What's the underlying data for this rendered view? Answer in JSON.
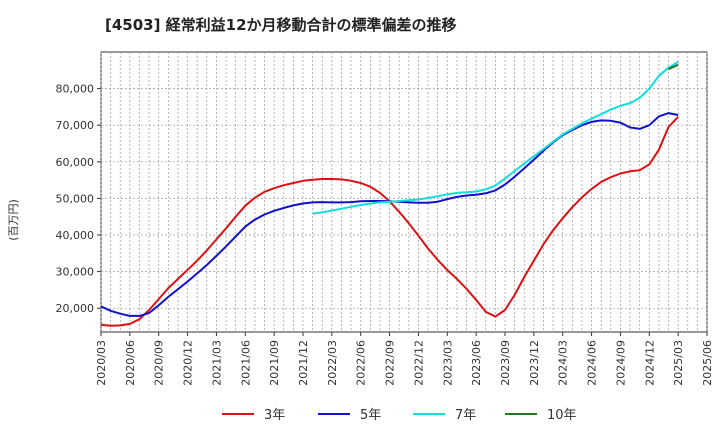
{
  "chart_data": {
    "type": "line",
    "title": "[4503]  経常利益12か月移動合計の標準偏差の推移",
    "ylabel": "(百万円)",
    "xlabel": "",
    "ylim": [
      13500,
      90000
    ],
    "yticks": [
      20000,
      30000,
      40000,
      50000,
      60000,
      70000,
      80000
    ],
    "ytick_labels": [
      "20,000",
      "30,000",
      "40,000",
      "50,000",
      "60,000",
      "70,000",
      "80,000"
    ],
    "x_range": [
      "2020-03",
      "2025-06"
    ],
    "xtick_labels": [
      "2020/03",
      "2020/06",
      "2020/09",
      "2020/12",
      "2021/03",
      "2021/06",
      "2021/09",
      "2021/12",
      "2022/03",
      "2022/06",
      "2022/09",
      "2022/12",
      "2023/03",
      "2023/06",
      "2023/09",
      "2023/12",
      "2024/03",
      "2024/06",
      "2024/09",
      "2024/12",
      "2025/03",
      "2025/06"
    ],
    "grid": true,
    "legend_position": "bottom",
    "series": [
      {
        "name": "3年",
        "color": "#dd1111",
        "x": [
          "2020-03",
          "2020-04",
          "2020-05",
          "2020-06",
          "2020-07",
          "2020-08",
          "2020-09",
          "2020-10",
          "2020-11",
          "2020-12",
          "2021-01",
          "2021-02",
          "2021-03",
          "2021-04",
          "2021-05",
          "2021-06",
          "2021-07",
          "2021-08",
          "2021-09",
          "2021-10",
          "2021-11",
          "2021-12",
          "2022-01",
          "2022-02",
          "2022-03",
          "2022-04",
          "2022-05",
          "2022-06",
          "2022-07",
          "2022-08",
          "2022-09",
          "2022-10",
          "2022-11",
          "2022-12",
          "2023-01",
          "2023-02",
          "2023-03",
          "2023-04",
          "2023-05",
          "2023-06",
          "2023-07",
          "2023-08",
          "2023-09",
          "2023-10",
          "2023-11",
          "2023-12",
          "2024-01",
          "2024-02",
          "2024-03",
          "2024-04",
          "2024-05",
          "2024-06",
          "2024-07",
          "2024-08",
          "2024-09",
          "2024-10",
          "2024-11",
          "2024-12",
          "2025-01",
          "2025-02",
          "2025-03"
        ],
        "y": [
          15500,
          15200,
          15300,
          15700,
          17000,
          19500,
          22500,
          25500,
          28000,
          30500,
          33000,
          35800,
          38800,
          41800,
          45000,
          48000,
          50200,
          51800,
          52800,
          53600,
          54200,
          54800,
          55100,
          55300,
          55300,
          55200,
          54800,
          54200,
          53200,
          51500,
          49200,
          46300,
          43200,
          39800,
          36300,
          33200,
          30400,
          28000,
          25300,
          22300,
          19000,
          17700,
          19500,
          23600,
          28500,
          33000,
          37500,
          41300,
          44600,
          47600,
          50300,
          52600,
          54500,
          55800,
          56800,
          57400,
          57700,
          59300,
          63300,
          69500,
          72300
        ]
      },
      {
        "name": "5年",
        "color": "#1111cc",
        "x": [
          "2020-03",
          "2020-04",
          "2020-05",
          "2020-06",
          "2020-07",
          "2020-08",
          "2020-09",
          "2020-10",
          "2020-11",
          "2020-12",
          "2021-01",
          "2021-02",
          "2021-03",
          "2021-04",
          "2021-05",
          "2021-06",
          "2021-07",
          "2021-08",
          "2021-09",
          "2021-10",
          "2021-11",
          "2021-12",
          "2022-01",
          "2022-02",
          "2022-03",
          "2022-04",
          "2022-05",
          "2022-06",
          "2022-07",
          "2022-08",
          "2022-09",
          "2022-10",
          "2022-11",
          "2022-12",
          "2023-01",
          "2023-02",
          "2023-03",
          "2023-04",
          "2023-05",
          "2023-06",
          "2023-07",
          "2023-08",
          "2023-09",
          "2023-10",
          "2023-11",
          "2023-12",
          "2024-01",
          "2024-02",
          "2024-03",
          "2024-04",
          "2024-05",
          "2024-06",
          "2024-07",
          "2024-08",
          "2024-09",
          "2024-10",
          "2024-11",
          "2024-12",
          "2025-01",
          "2025-02",
          "2025-03"
        ],
        "y": [
          20500,
          19300,
          18500,
          17900,
          17900,
          18700,
          20800,
          23100,
          25200,
          27300,
          29500,
          31800,
          34300,
          36900,
          39600,
          42300,
          44200,
          45600,
          46600,
          47400,
          48100,
          48600,
          48900,
          49000,
          48900,
          48900,
          49000,
          49200,
          49300,
          49300,
          49200,
          49100,
          48900,
          48800,
          48800,
          49100,
          49800,
          50400,
          50800,
          51000,
          51400,
          52200,
          53800,
          55900,
          58200,
          60600,
          63000,
          65300,
          67300,
          68700,
          70000,
          70900,
          71300,
          71200,
          70700,
          69400,
          69000,
          70000,
          72400,
          73300,
          72800
        ]
      },
      {
        "name": "7年",
        "color": "#11dddd",
        "x": [
          "2022-01",
          "2022-02",
          "2022-03",
          "2022-04",
          "2022-05",
          "2022-06",
          "2022-07",
          "2022-08",
          "2022-09",
          "2022-10",
          "2022-11",
          "2022-12",
          "2023-01",
          "2023-02",
          "2023-03",
          "2023-04",
          "2023-05",
          "2023-06",
          "2023-07",
          "2023-08",
          "2023-09",
          "2023-10",
          "2023-11",
          "2023-12",
          "2024-01",
          "2024-02",
          "2024-03",
          "2024-04",
          "2024-05",
          "2024-06",
          "2024-07",
          "2024-08",
          "2024-09",
          "2024-10",
          "2024-11",
          "2024-12",
          "2025-01",
          "2025-02",
          "2025-03"
        ],
        "y": [
          45800,
          46200,
          46700,
          47200,
          47700,
          48200,
          48600,
          48900,
          49100,
          49300,
          49500,
          49700,
          50100,
          50600,
          51100,
          51500,
          51700,
          51900,
          52500,
          53500,
          55400,
          57500,
          59500,
          61500,
          63500,
          65500,
          67500,
          69000,
          70500,
          71800,
          73000,
          74300,
          75300,
          76000,
          77500,
          80000,
          83500,
          85700,
          87300
        ]
      },
      {
        "name": "10年",
        "color": "#227722",
        "x": [
          "2025-02",
          "2025-03"
        ],
        "y": [
          85300,
          86500
        ]
      }
    ]
  }
}
